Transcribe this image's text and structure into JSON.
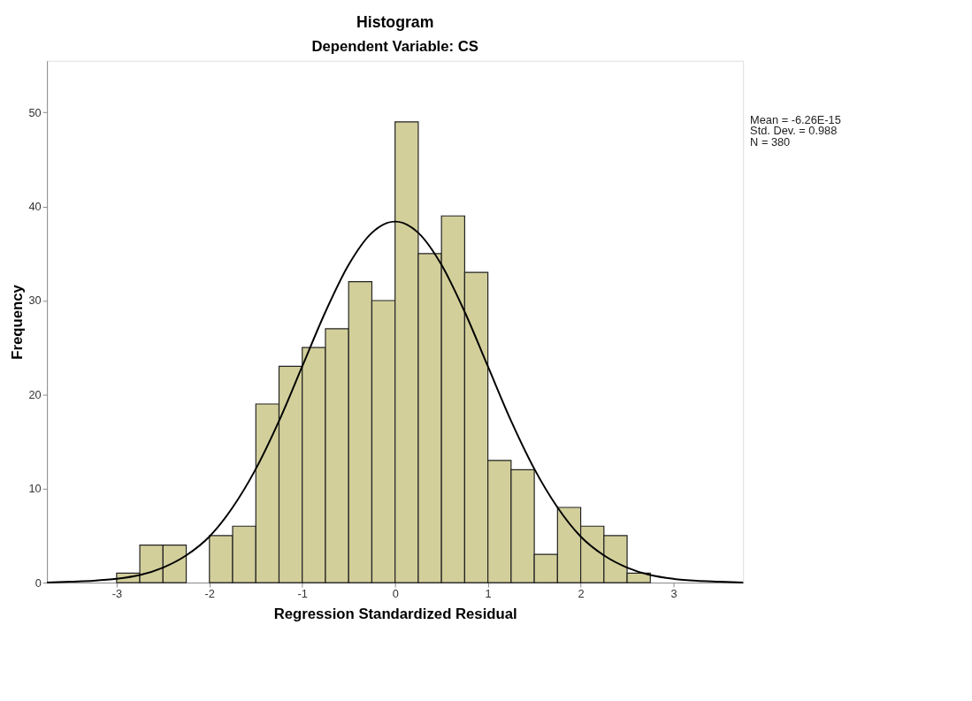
{
  "chart_data": {
    "type": "histogram",
    "title": "Histogram",
    "subtitle": "Dependent Variable: CS",
    "xlabel": "Regression Standardized Residual",
    "ylabel": "Frequency",
    "series": [
      {
        "color": "#d3cf9b",
        "bins": [
          -3,
          -2.75,
          -2.5,
          -2.25,
          -2,
          -1.75,
          -1.5,
          -1.25,
          -1,
          -0.75,
          -0.5,
          -0.25,
          0,
          0.25,
          0.5,
          0.75,
          1,
          1.25,
          1.5,
          1.75,
          2,
          2.25,
          2.5,
          2.75
        ],
        "values": [
          1,
          4,
          4,
          0,
          5,
          6,
          19,
          23,
          25,
          27,
          32,
          30,
          49,
          35,
          39,
          33,
          13,
          12,
          3,
          8,
          6,
          5,
          1
        ]
      },
      {
        "type": "line",
        "color": "#000000",
        "x": [
          -3.75,
          -3.5,
          -3.25,
          -3,
          -2.75,
          -2.5,
          -2.25,
          -2,
          -1.75,
          -1.5,
          -1.25,
          -1,
          -0.75,
          -0.5,
          -0.25,
          0,
          0.25,
          0.5,
          0.75,
          1,
          1.25,
          1.5,
          1.75,
          2,
          2.25,
          2.5,
          2.75,
          3,
          3.25,
          3.5,
          3.75
        ],
        "values": [
          0.0,
          0.1,
          0.2,
          0.4,
          0.8,
          1.6,
          2.9,
          4.9,
          8.0,
          12.1,
          17.2,
          23.0,
          28.8,
          33.8,
          37.2,
          38.4,
          37.2,
          33.8,
          28.8,
          23.0,
          17.2,
          12.1,
          8.0,
          4.9,
          2.9,
          1.6,
          0.8,
          0.4,
          0.2,
          0.1,
          0.0
        ]
      }
    ],
    "xlim": [
      -3.75,
      3.75
    ],
    "xticks": [
      -3,
      -2,
      -1,
      0,
      1,
      2,
      3
    ],
    "ylim": [
      0,
      55.5
    ],
    "yticks": [
      0,
      10,
      20,
      30,
      40,
      50
    ],
    "grid": false,
    "annotations": [
      "Mean = -6.26E-15",
      "Std. Dev. = 0.988",
      "N = 380"
    ]
  }
}
